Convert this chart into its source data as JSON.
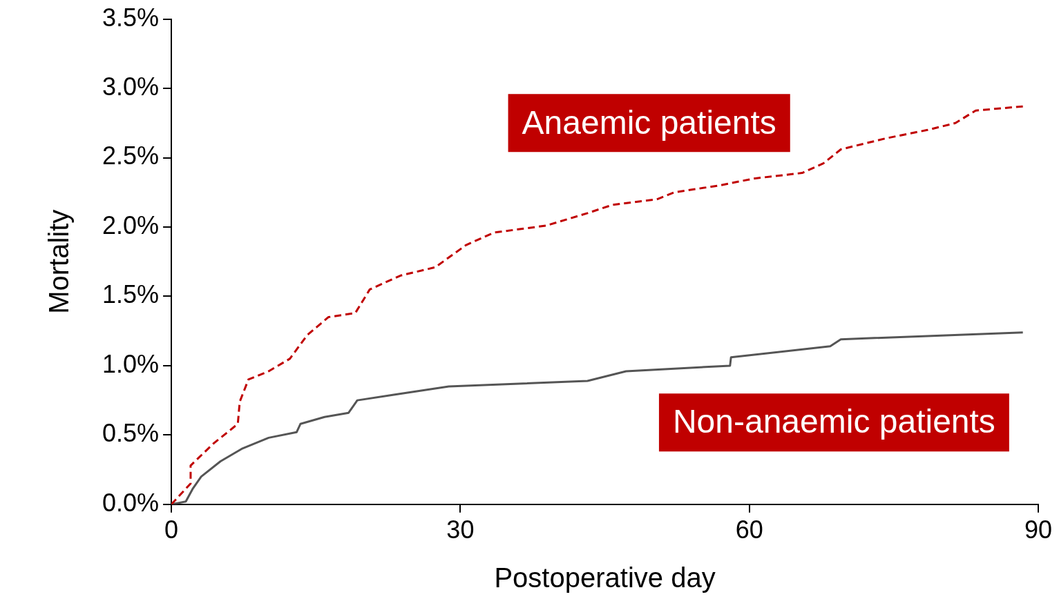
{
  "chart_data": {
    "type": "line",
    "xlabel": "Postoperative day",
    "ylabel": "Mortality",
    "xlim": [
      0,
      90
    ],
    "xticks": [
      0,
      30,
      60,
      90
    ],
    "ylim": [
      0,
      3.5
    ],
    "yticks": [
      {
        "value": 0,
        "label": "0.0%"
      },
      {
        "value": 0.5,
        "label": "0.5%"
      },
      {
        "value": 1,
        "label": "1.0%"
      },
      {
        "value": 1.5,
        "label": "1.5%"
      },
      {
        "value": 2,
        "label": "2.0%"
      },
      {
        "value": 2.5,
        "label": "2.5%"
      },
      {
        "value": 3,
        "label": "3.0%"
      },
      {
        "value": 3.5,
        "label": "3.5%"
      }
    ],
    "grid": false,
    "legend": false,
    "marker": "none",
    "series": [
      {
        "name": "Anaemic patients",
        "color": "#c00000",
        "line_style": "dashed",
        "x": [
          0,
          2.0,
          2.0,
          4.4,
          6.9,
          7.1,
          8.0,
          10.1,
          12.3,
          14.1,
          16.3,
          19.1,
          20.6,
          23.8,
          27.4,
          30.6,
          33.5,
          38.9,
          43.2,
          45.8,
          50.4,
          52.2,
          56.9,
          60.5,
          65.5,
          67.7,
          69.5,
          74.2,
          78.5,
          81.4,
          83.5,
          88.4
        ],
        "values": [
          0,
          0.15,
          0.28,
          0.44,
          0.58,
          0.74,
          0.9,
          0.96,
          1.05,
          1.22,
          1.35,
          1.38,
          1.55,
          1.65,
          1.71,
          1.87,
          1.96,
          2.01,
          2.1,
          2.16,
          2.2,
          2.25,
          2.3,
          2.35,
          2.39,
          2.46,
          2.56,
          2.64,
          2.7,
          2.75,
          2.84,
          2.87
        ]
      },
      {
        "name": "Non-anaemic patients",
        "color": "#555555",
        "line_style": "solid",
        "x": [
          0,
          1.5,
          2.2,
          3.1,
          5.1,
          7.3,
          10.1,
          13.0,
          13.4,
          15.9,
          18.4,
          19.3,
          23.1,
          28.8,
          43.2,
          47.2,
          58.0,
          58.1,
          68.4,
          69.5,
          88.4
        ],
        "values": [
          0,
          0.02,
          0.11,
          0.2,
          0.31,
          0.4,
          0.48,
          0.52,
          0.58,
          0.63,
          0.66,
          0.75,
          0.79,
          0.85,
          0.89,
          0.96,
          1.0,
          1.06,
          1.14,
          1.19,
          1.24
        ]
      }
    ]
  }
}
